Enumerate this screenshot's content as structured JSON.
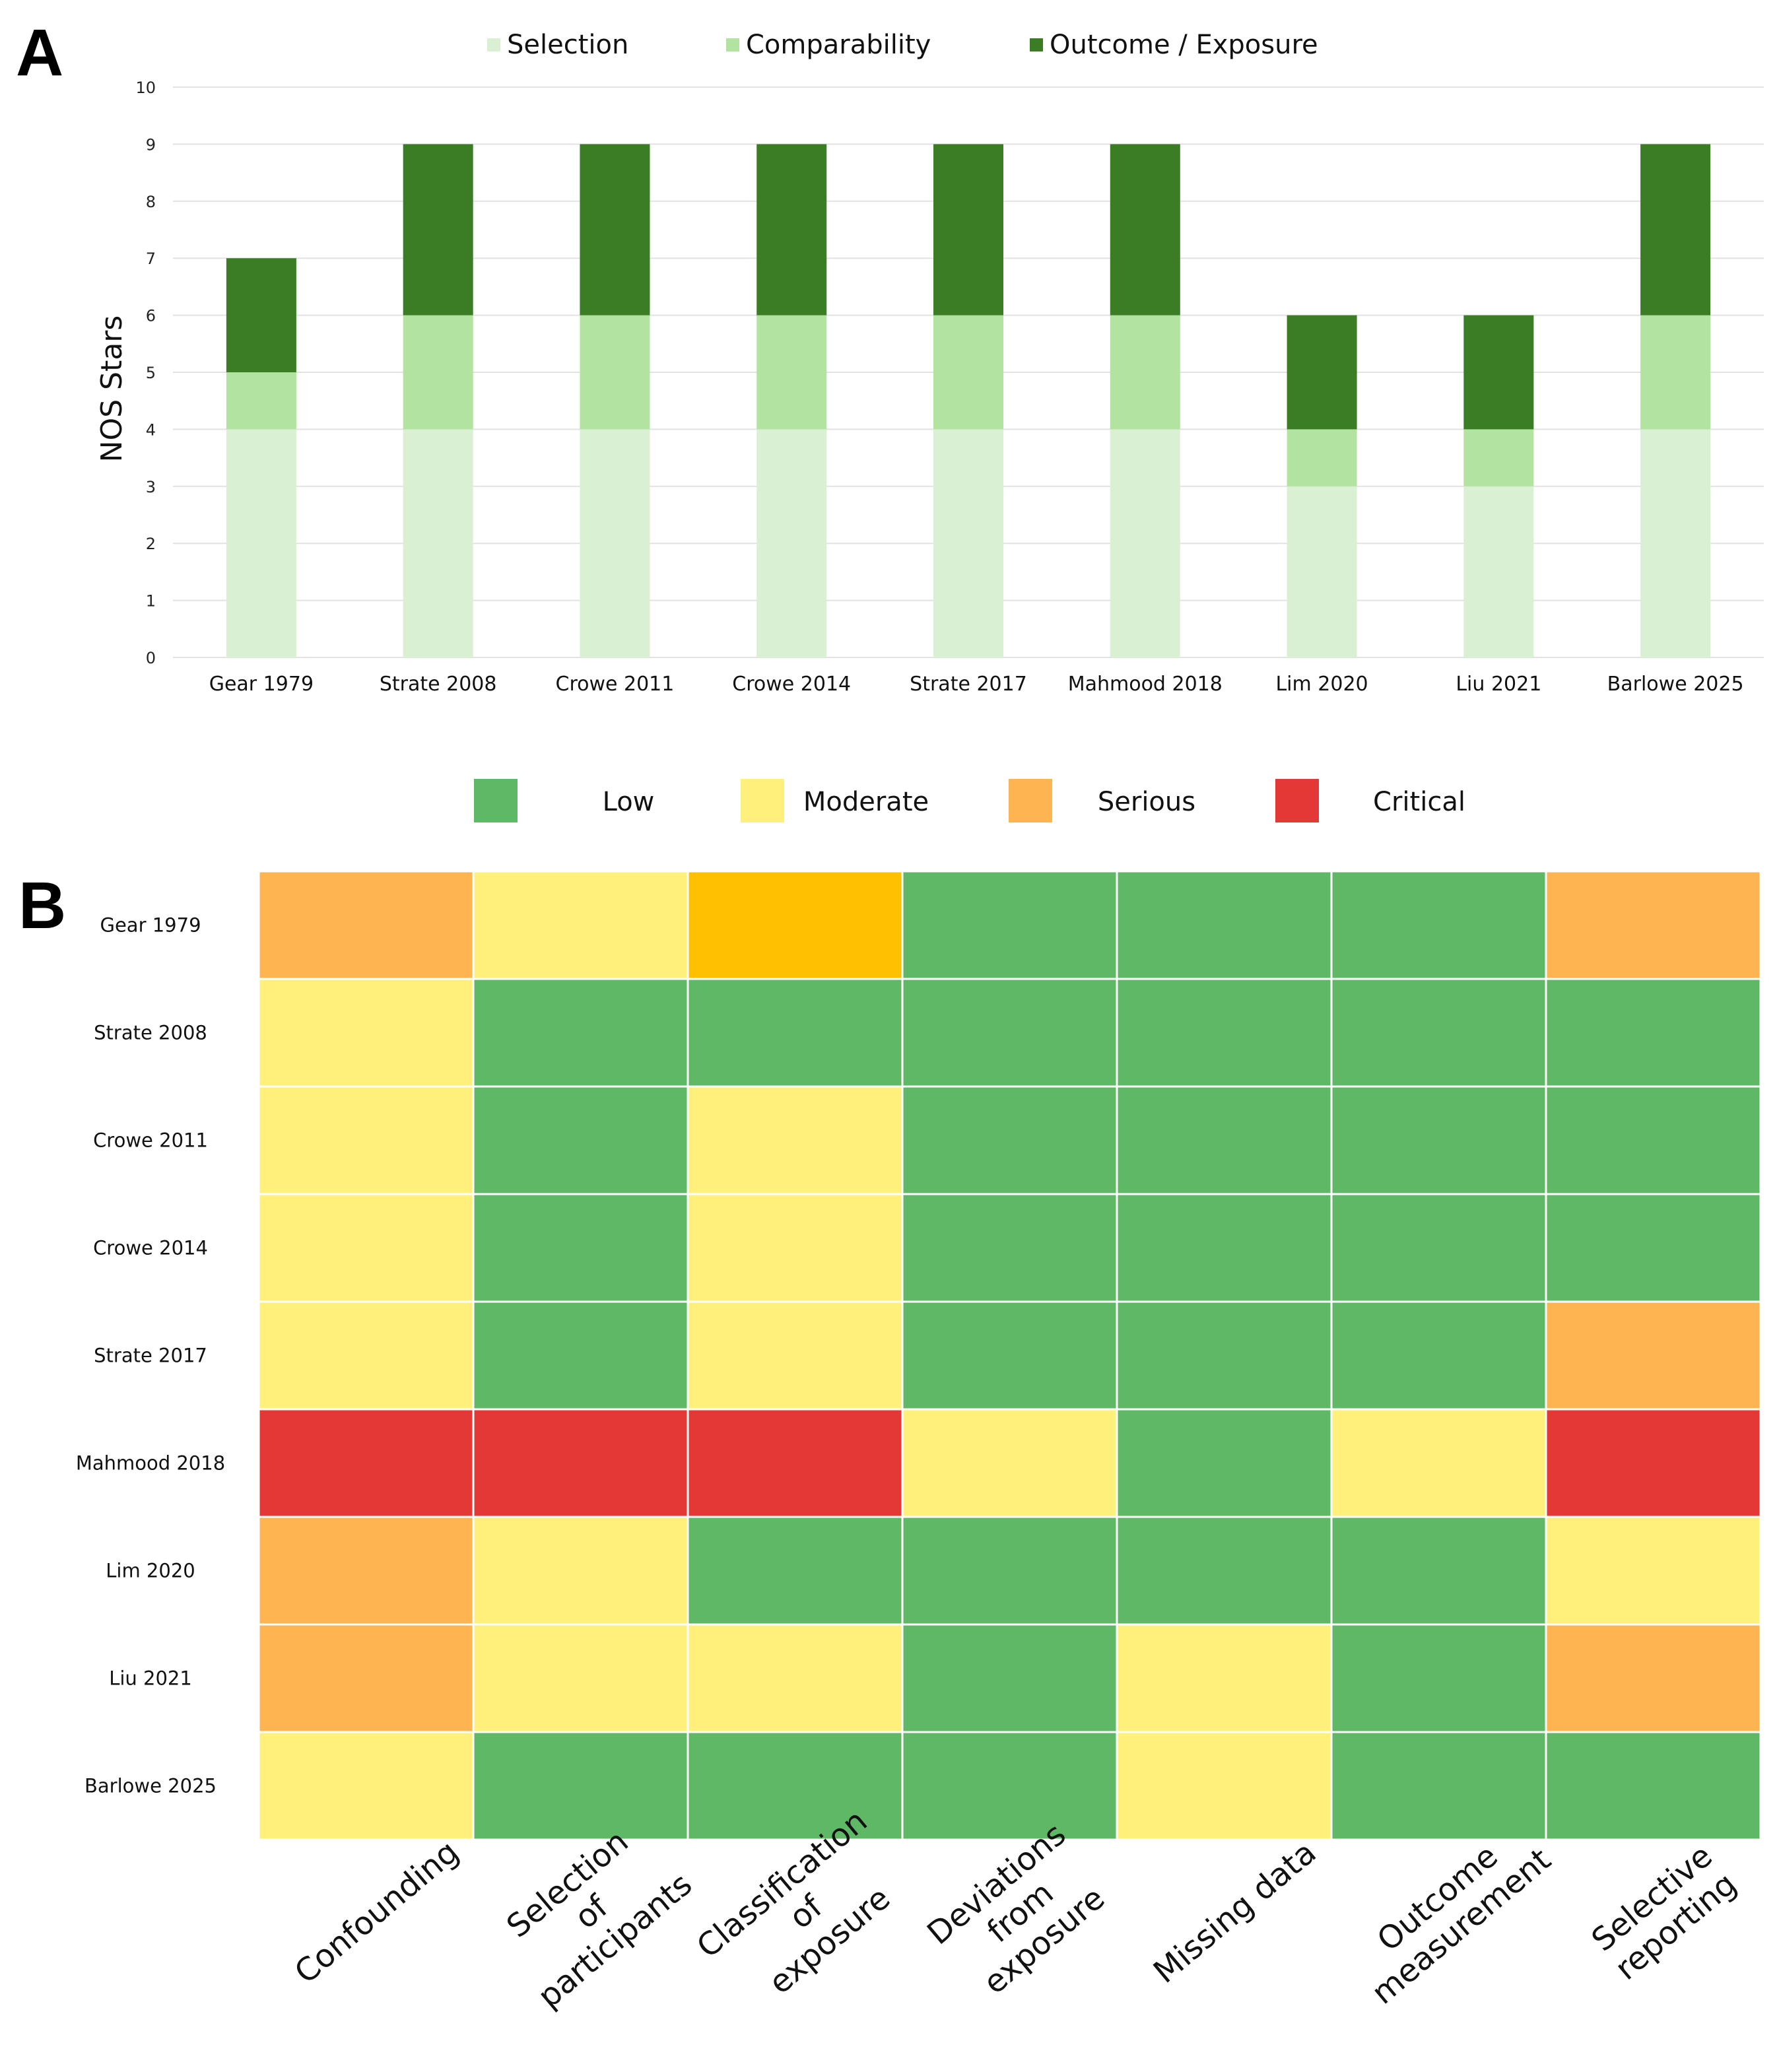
{
  "chart_data": [
    {
      "panel": "A",
      "type": "bar",
      "stacked": true,
      "ylabel": "NOS Stars",
      "ylim": [
        0,
        10
      ],
      "yticks": [
        0,
        1,
        2,
        3,
        4,
        5,
        6,
        7,
        8,
        9,
        10
      ],
      "grid": true,
      "legend_position": "top",
      "categories": [
        "Gear 1979",
        "Strate 2008",
        "Crowe 2011",
        "Crowe 2014",
        "Strate 2017",
        "Mahmood 2018",
        "Lim 2020",
        "Liu 2021",
        "Barlowe 2025"
      ],
      "series": [
        {
          "name": "Selection",
          "color": "#d9f0d2",
          "values": [
            4,
            4,
            4,
            4,
            4,
            4,
            3,
            3,
            4
          ]
        },
        {
          "name": "Comparability",
          "color": "#b3e3a0",
          "values": [
            1,
            2,
            2,
            2,
            2,
            2,
            1,
            1,
            2
          ]
        },
        {
          "name": "Outcome / Exposure",
          "color": "#3a7d24",
          "values": [
            2,
            3,
            3,
            3,
            3,
            3,
            2,
            2,
            3
          ]
        }
      ]
    },
    {
      "panel": "B",
      "type": "heatmap",
      "legend_position": "top",
      "levels": [
        {
          "name": "Low",
          "color": "#5fb865"
        },
        {
          "name": "Moderate",
          "color": "#fef07a"
        },
        {
          "name": "Serious",
          "color": "#feb450"
        },
        {
          "name": "Critical",
          "color": "#e43836"
        }
      ],
      "extra_colors": {
        "Moderate-Serious": "#fec000"
      },
      "rows": [
        "Gear 1979",
        "Strate 2008",
        "Crowe 2011",
        "Crowe 2014",
        "Strate 2017",
        "Mahmood 2018",
        "Lim 2020",
        "Liu 2021",
        "Barlowe 2025"
      ],
      "columns": [
        [
          "Confounding"
        ],
        [
          "Selection",
          "of",
          "participants"
        ],
        [
          "Classification",
          "of",
          "exposure"
        ],
        [
          "Deviations",
          "from",
          "exposure"
        ],
        [
          "Missing data"
        ],
        [
          "Outcome",
          "measurement"
        ],
        [
          "Selective",
          "reporting"
        ]
      ],
      "values": [
        [
          "Serious",
          "Moderate",
          "Moderate-Serious",
          "Low",
          "Low",
          "Low",
          "Serious"
        ],
        [
          "Moderate",
          "Low",
          "Low",
          "Low",
          "Low",
          "Low",
          "Low"
        ],
        [
          "Moderate",
          "Low",
          "Moderate",
          "Low",
          "Low",
          "Low",
          "Low"
        ],
        [
          "Moderate",
          "Low",
          "Moderate",
          "Low",
          "Low",
          "Low",
          "Low"
        ],
        [
          "Moderate",
          "Low",
          "Moderate",
          "Low",
          "Low",
          "Low",
          "Serious"
        ],
        [
          "Critical",
          "Critical",
          "Critical",
          "Moderate",
          "Low",
          "Moderate",
          "Critical"
        ],
        [
          "Serious",
          "Moderate",
          "Low",
          "Low",
          "Low",
          "Low",
          "Moderate"
        ],
        [
          "Serious",
          "Moderate",
          "Moderate",
          "Low",
          "Moderate",
          "Low",
          "Serious"
        ],
        [
          "Moderate",
          "Low",
          "Low",
          "Low",
          "Moderate",
          "Low",
          "Low"
        ]
      ]
    }
  ],
  "panels": {
    "a_label": "A",
    "b_label": "B"
  }
}
